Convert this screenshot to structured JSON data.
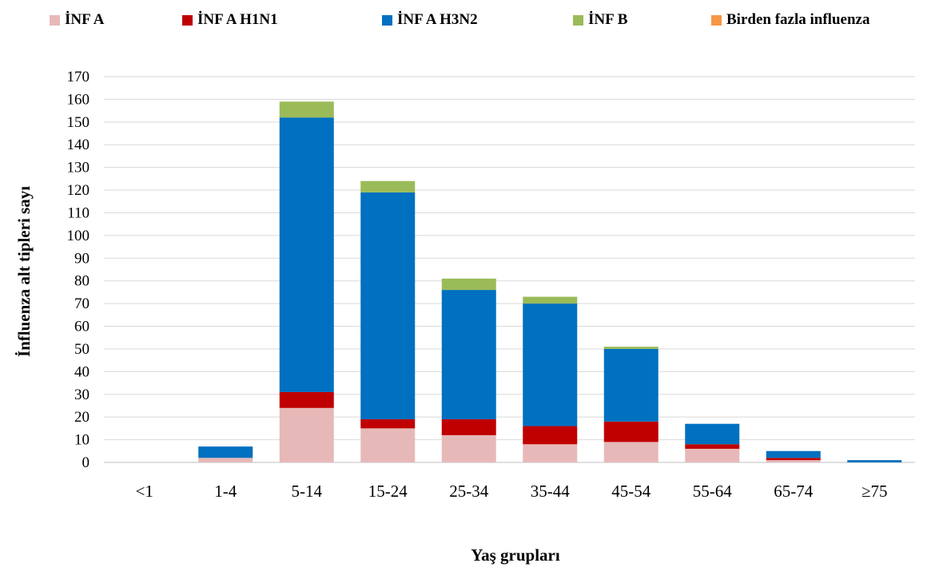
{
  "chart_data": {
    "type": "bar",
    "stacked": true,
    "title": "",
    "xlabel": "Yaş grupları",
    "ylabel": "İnfluenza alt tipleri sayı",
    "ylim": [
      0,
      170
    ],
    "ytick_step": 10,
    "grid": true,
    "legend_position": "top",
    "categories": [
      "<1",
      "1-4",
      "5-14",
      "15-24",
      "25-34",
      "35-44",
      "45-54",
      "55-64",
      "65-74",
      "≥75"
    ],
    "series": [
      {
        "name": "İNF A",
        "color": "#e6b9b8",
        "values": [
          0,
          2,
          24,
          15,
          12,
          8,
          9,
          6,
          1,
          0
        ]
      },
      {
        "name": "İNF A H1N1",
        "color": "#c00000",
        "values": [
          0,
          0,
          7,
          4,
          7,
          8,
          9,
          2,
          1,
          0
        ]
      },
      {
        "name": "İNF A H3N2",
        "color": "#0070c0",
        "values": [
          0,
          5,
          121,
          100,
          57,
          54,
          32,
          9,
          3,
          1
        ]
      },
      {
        "name": "İNF B",
        "color": "#9bbb59",
        "values": [
          0,
          0,
          7,
          5,
          5,
          3,
          1,
          0,
          0,
          0
        ]
      },
      {
        "name": "Birden fazla influenza",
        "color": "#f79646",
        "values": [
          0,
          0,
          0,
          0,
          0,
          0,
          0,
          0,
          0,
          0
        ]
      }
    ]
  }
}
